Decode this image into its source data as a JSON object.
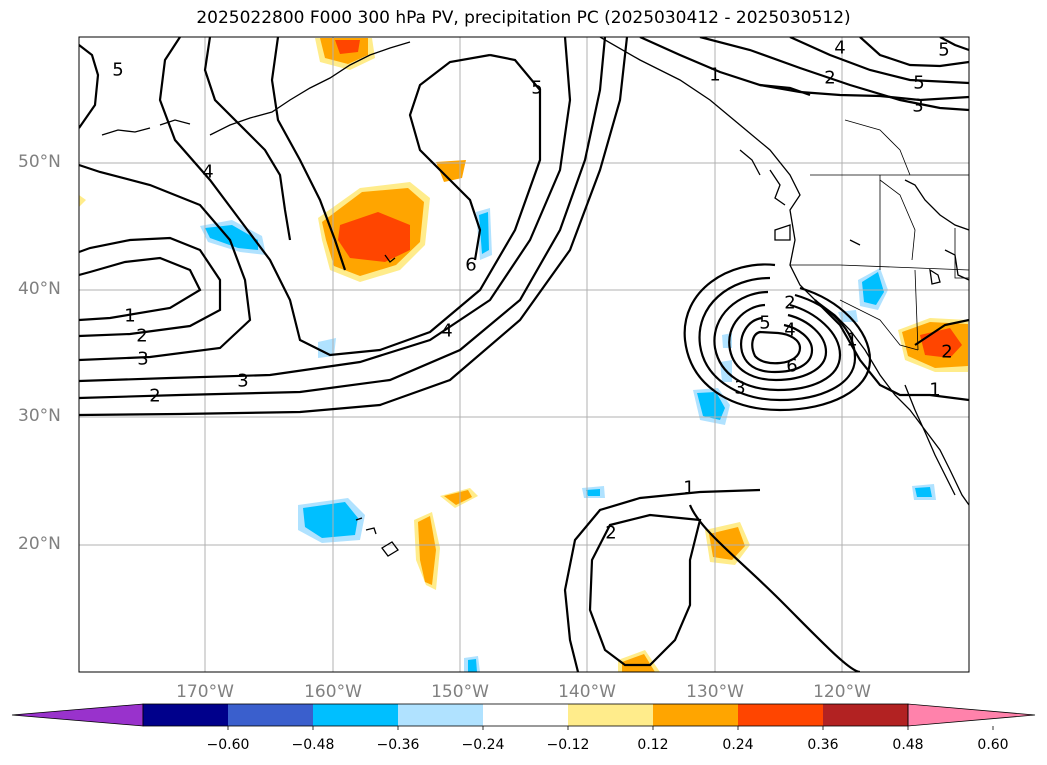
{
  "title": "2025022800 F000 300 hPa PV, precipitation PC (2025030412 - 2025030512)",
  "lat_labels": [
    "50°N",
    "40°N",
    "30°N",
    "20°N"
  ],
  "lon_labels": [
    "170°W",
    "160°W",
    "150°W",
    "140°W",
    "130°W",
    "120°W"
  ],
  "colorbar": {
    "ticks": [
      "−0.60",
      "−0.48",
      "−0.36",
      "−0.24",
      "−0.12",
      "0.12",
      "0.24",
      "0.36",
      "0.48",
      "0.60"
    ],
    "colors": [
      "#9932cc",
      "#00008b",
      "#3a5fcd",
      "#00bfff",
      "#b0e2ff",
      "#ffffff",
      "#ffec8b",
      "#ffa500",
      "#ff4500",
      "#b22222",
      "#ff82ab"
    ],
    "extend": "both"
  },
  "contour_labels": [
    {
      "text": "5"
    },
    {
      "text": "4"
    },
    {
      "text": "1"
    },
    {
      "text": "2"
    },
    {
      "text": "3"
    },
    {
      "text": "2"
    },
    {
      "text": "3"
    },
    {
      "text": "4"
    },
    {
      "text": "6"
    },
    {
      "text": "5"
    },
    {
      "text": "1"
    },
    {
      "text": "2"
    },
    {
      "text": "5"
    },
    {
      "text": "3"
    },
    {
      "text": "4"
    },
    {
      "text": "5"
    },
    {
      "text": "2"
    },
    {
      "text": "5"
    },
    {
      "text": "4"
    },
    {
      "text": "6"
    },
    {
      "text": "3"
    },
    {
      "text": "1"
    },
    {
      "text": "1"
    },
    {
      "text": "2"
    },
    {
      "text": "1"
    },
    {
      "text": "2"
    }
  ]
}
